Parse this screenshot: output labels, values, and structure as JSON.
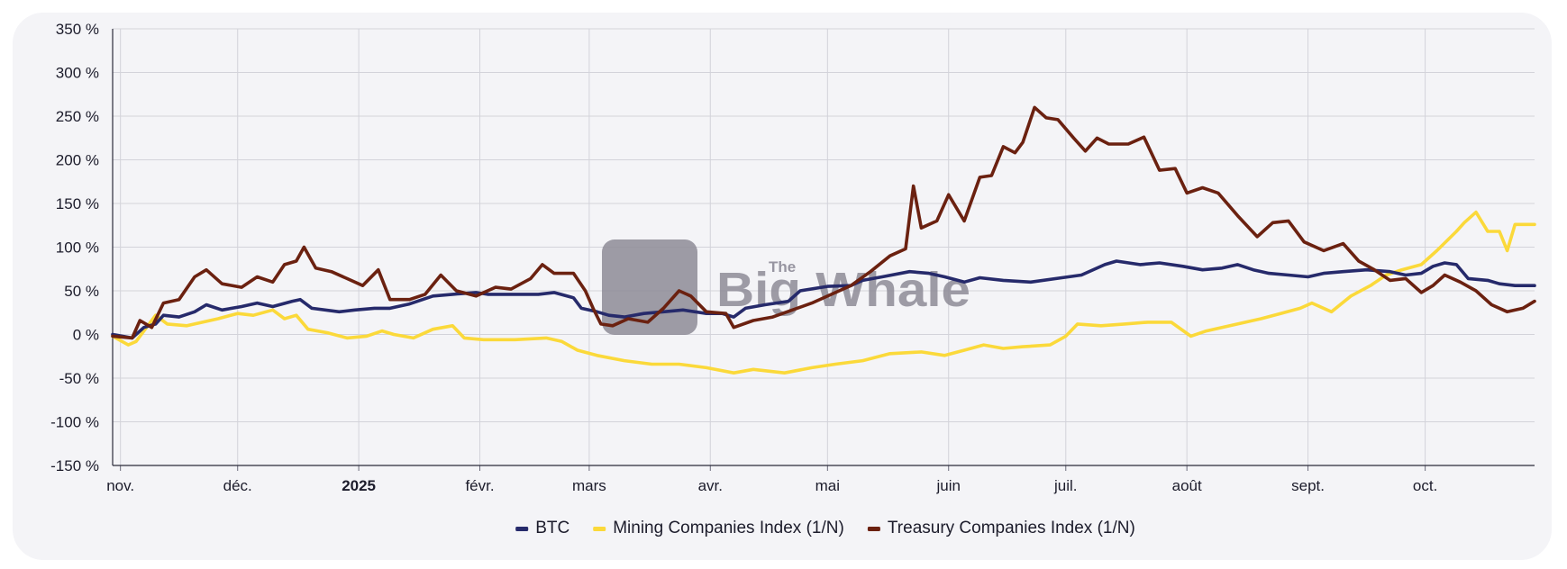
{
  "chart_data": {
    "type": "line",
    "y_unit": "%",
    "ylim": [
      -150,
      350
    ],
    "y_ticks": [
      350,
      300,
      250,
      200,
      150,
      100,
      50,
      0,
      -50,
      -100,
      -150
    ],
    "y_tick_labels": [
      "350 %",
      "300 %",
      "250 %",
      "200 %",
      "150 %",
      "100 %",
      "50 %",
      "0 %",
      "-50 %",
      "-100 %",
      "-150 %"
    ],
    "x_start": "2024-10-30",
    "x_end": "2025-10-29",
    "x_ticks": [
      {
        "date": "2024-11-01",
        "label": "nov.",
        "bold": false
      },
      {
        "date": "2024-12-01",
        "label": "déc.",
        "bold": false
      },
      {
        "date": "2025-01-01",
        "label": "2025",
        "bold": true
      },
      {
        "date": "2025-02-01",
        "label": "févr.",
        "bold": false
      },
      {
        "date": "2025-03-01",
        "label": "mars",
        "bold": false
      },
      {
        "date": "2025-04-01",
        "label": "avr.",
        "bold": false
      },
      {
        "date": "2025-05-01",
        "label": "mai",
        "bold": false
      },
      {
        "date": "2025-06-01",
        "label": "juin",
        "bold": false
      },
      {
        "date": "2025-07-01",
        "label": "juil.",
        "bold": false
      },
      {
        "date": "2025-08-01",
        "label": "août",
        "bold": false
      },
      {
        "date": "2025-09-01",
        "label": "sept.",
        "bold": false
      },
      {
        "date": "2025-10-01",
        "label": "oct.",
        "bold": false
      }
    ],
    "grid": true,
    "legend_position": "bottom-center",
    "series": [
      {
        "name": "BTC",
        "color": "#262a6b",
        "points": [
          [
            "2024-10-30",
            0
          ],
          [
            "2024-11-04",
            -4
          ],
          [
            "2024-11-07",
            8
          ],
          [
            "2024-11-10",
            12
          ],
          [
            "2024-11-12",
            22
          ],
          [
            "2024-11-16",
            20
          ],
          [
            "2024-11-20",
            26
          ],
          [
            "2024-11-23",
            34
          ],
          [
            "2024-11-27",
            28
          ],
          [
            "2024-12-02",
            32
          ],
          [
            "2024-12-06",
            36
          ],
          [
            "2024-12-10",
            32
          ],
          [
            "2024-12-15",
            38
          ],
          [
            "2024-12-17",
            40
          ],
          [
            "2024-12-20",
            30
          ],
          [
            "2024-12-27",
            26
          ],
          [
            "2024-12-31",
            28
          ],
          [
            "2025-01-05",
            30
          ],
          [
            "2025-01-09",
            30
          ],
          [
            "2025-01-14",
            35
          ],
          [
            "2025-01-20",
            44
          ],
          [
            "2025-01-25",
            46
          ],
          [
            "2025-01-31",
            48
          ],
          [
            "2025-02-03",
            46
          ],
          [
            "2025-02-10",
            46
          ],
          [
            "2025-02-16",
            46
          ],
          [
            "2025-02-20",
            48
          ],
          [
            "2025-02-25",
            42
          ],
          [
            "2025-02-27",
            30
          ],
          [
            "2025-03-03",
            26
          ],
          [
            "2025-03-06",
            22
          ],
          [
            "2025-03-10",
            20
          ],
          [
            "2025-03-15",
            24
          ],
          [
            "2025-03-20",
            26
          ],
          [
            "2025-03-25",
            28
          ],
          [
            "2025-03-31",
            24
          ],
          [
            "2025-04-04",
            24
          ],
          [
            "2025-04-07",
            20
          ],
          [
            "2025-04-10",
            30
          ],
          [
            "2025-04-15",
            34
          ],
          [
            "2025-04-21",
            38
          ],
          [
            "2025-04-24",
            50
          ],
          [
            "2025-05-01",
            55
          ],
          [
            "2025-05-07",
            56
          ],
          [
            "2025-05-10",
            62
          ],
          [
            "2025-05-15",
            66
          ],
          [
            "2025-05-22",
            72
          ],
          [
            "2025-05-27",
            70
          ],
          [
            "2025-05-31",
            66
          ],
          [
            "2025-06-05",
            60
          ],
          [
            "2025-06-09",
            65
          ],
          [
            "2025-06-15",
            62
          ],
          [
            "2025-06-22",
            60
          ],
          [
            "2025-06-30",
            65
          ],
          [
            "2025-07-05",
            68
          ],
          [
            "2025-07-11",
            80
          ],
          [
            "2025-07-14",
            84
          ],
          [
            "2025-07-20",
            80
          ],
          [
            "2025-07-25",
            82
          ],
          [
            "2025-07-31",
            78
          ],
          [
            "2025-08-05",
            74
          ],
          [
            "2025-08-10",
            76
          ],
          [
            "2025-08-14",
            80
          ],
          [
            "2025-08-18",
            74
          ],
          [
            "2025-08-22",
            70
          ],
          [
            "2025-08-27",
            68
          ],
          [
            "2025-09-01",
            66
          ],
          [
            "2025-09-05",
            70
          ],
          [
            "2025-09-10",
            72
          ],
          [
            "2025-09-16",
            74
          ],
          [
            "2025-09-22",
            72
          ],
          [
            "2025-09-26",
            68
          ],
          [
            "2025-09-30",
            70
          ],
          [
            "2025-10-03",
            78
          ],
          [
            "2025-10-06",
            82
          ],
          [
            "2025-10-09",
            80
          ],
          [
            "2025-10-12",
            64
          ],
          [
            "2025-10-17",
            62
          ],
          [
            "2025-10-20",
            58
          ],
          [
            "2025-10-24",
            56
          ],
          [
            "2025-10-29",
            56
          ]
        ]
      },
      {
        "name": "Mining Companies Index (1/N)",
        "color": "#fbd93a",
        "points": [
          [
            "2024-10-30",
            -2
          ],
          [
            "2024-11-03",
            -12
          ],
          [
            "2024-11-05",
            -8
          ],
          [
            "2024-11-08",
            10
          ],
          [
            "2024-11-10",
            22
          ],
          [
            "2024-11-13",
            12
          ],
          [
            "2024-11-18",
            10
          ],
          [
            "2024-11-22",
            14
          ],
          [
            "2024-11-26",
            18
          ],
          [
            "2024-12-01",
            24
          ],
          [
            "2024-12-05",
            22
          ],
          [
            "2024-12-10",
            28
          ],
          [
            "2024-12-13",
            18
          ],
          [
            "2024-12-16",
            22
          ],
          [
            "2024-12-19",
            6
          ],
          [
            "2024-12-24",
            2
          ],
          [
            "2024-12-29",
            -4
          ],
          [
            "2025-01-03",
            -2
          ],
          [
            "2025-01-07",
            4
          ],
          [
            "2025-01-10",
            0
          ],
          [
            "2025-01-15",
            -4
          ],
          [
            "2025-01-20",
            6
          ],
          [
            "2025-01-25",
            10
          ],
          [
            "2025-01-28",
            -4
          ],
          [
            "2025-02-02",
            -6
          ],
          [
            "2025-02-10",
            -6
          ],
          [
            "2025-02-18",
            -4
          ],
          [
            "2025-02-22",
            -8
          ],
          [
            "2025-02-26",
            -18
          ],
          [
            "2025-03-03",
            -24
          ],
          [
            "2025-03-10",
            -30
          ],
          [
            "2025-03-17",
            -34
          ],
          [
            "2025-03-24",
            -34
          ],
          [
            "2025-03-31",
            -38
          ],
          [
            "2025-04-07",
            -44
          ],
          [
            "2025-04-12",
            -40
          ],
          [
            "2025-04-20",
            -44
          ],
          [
            "2025-04-27",
            -38
          ],
          [
            "2025-05-03",
            -34
          ],
          [
            "2025-05-10",
            -30
          ],
          [
            "2025-05-17",
            -22
          ],
          [
            "2025-05-25",
            -20
          ],
          [
            "2025-05-31",
            -24
          ],
          [
            "2025-06-05",
            -18
          ],
          [
            "2025-06-10",
            -12
          ],
          [
            "2025-06-15",
            -16
          ],
          [
            "2025-06-20",
            -14
          ],
          [
            "2025-06-27",
            -12
          ],
          [
            "2025-07-01",
            -2
          ],
          [
            "2025-07-04",
            12
          ],
          [
            "2025-07-10",
            10
          ],
          [
            "2025-07-16",
            12
          ],
          [
            "2025-07-22",
            14
          ],
          [
            "2025-07-28",
            14
          ],
          [
            "2025-08-02",
            -2
          ],
          [
            "2025-08-06",
            4
          ],
          [
            "2025-08-12",
            10
          ],
          [
            "2025-08-16",
            14
          ],
          [
            "2025-08-20",
            18
          ],
          [
            "2025-08-25",
            24
          ],
          [
            "2025-08-30",
            30
          ],
          [
            "2025-09-02",
            36
          ],
          [
            "2025-09-07",
            26
          ],
          [
            "2025-09-12",
            44
          ],
          [
            "2025-09-17",
            56
          ],
          [
            "2025-09-21",
            68
          ],
          [
            "2025-09-25",
            74
          ],
          [
            "2025-09-30",
            80
          ],
          [
            "2025-10-04",
            96
          ],
          [
            "2025-10-09",
            118
          ],
          [
            "2025-10-11",
            128
          ],
          [
            "2025-10-14",
            140
          ],
          [
            "2025-10-17",
            118
          ],
          [
            "2025-10-20",
            118
          ],
          [
            "2025-10-22",
            96
          ],
          [
            "2025-10-24",
            126
          ],
          [
            "2025-10-29",
            126
          ]
        ]
      },
      {
        "name": "Treasury Companies Index (1/N)",
        "color": "#6b2110",
        "points": [
          [
            "2024-10-30",
            -2
          ],
          [
            "2024-11-04",
            -4
          ],
          [
            "2024-11-06",
            16
          ],
          [
            "2024-11-09",
            8
          ],
          [
            "2024-11-12",
            36
          ],
          [
            "2024-11-16",
            40
          ],
          [
            "2024-11-20",
            66
          ],
          [
            "2024-11-23",
            74
          ],
          [
            "2024-11-27",
            58
          ],
          [
            "2024-12-02",
            54
          ],
          [
            "2024-12-06",
            66
          ],
          [
            "2024-12-10",
            60
          ],
          [
            "2024-12-13",
            80
          ],
          [
            "2024-12-16",
            84
          ],
          [
            "2024-12-18",
            100
          ],
          [
            "2024-12-21",
            76
          ],
          [
            "2024-12-25",
            72
          ],
          [
            "2024-12-29",
            64
          ],
          [
            "2025-01-02",
            56
          ],
          [
            "2025-01-06",
            74
          ],
          [
            "2025-01-09",
            40
          ],
          [
            "2025-01-14",
            40
          ],
          [
            "2025-01-18",
            46
          ],
          [
            "2025-01-22",
            68
          ],
          [
            "2025-01-26",
            50
          ],
          [
            "2025-01-31",
            44
          ],
          [
            "2025-02-05",
            54
          ],
          [
            "2025-02-09",
            52
          ],
          [
            "2025-02-14",
            64
          ],
          [
            "2025-02-17",
            80
          ],
          [
            "2025-02-20",
            70
          ],
          [
            "2025-02-25",
            70
          ],
          [
            "2025-02-28",
            50
          ],
          [
            "2025-03-02",
            30
          ],
          [
            "2025-03-04",
            12
          ],
          [
            "2025-03-07",
            10
          ],
          [
            "2025-03-11",
            18
          ],
          [
            "2025-03-16",
            14
          ],
          [
            "2025-03-20",
            30
          ],
          [
            "2025-03-24",
            50
          ],
          [
            "2025-03-27",
            44
          ],
          [
            "2025-03-31",
            26
          ],
          [
            "2025-04-05",
            24
          ],
          [
            "2025-04-07",
            8
          ],
          [
            "2025-04-12",
            16
          ],
          [
            "2025-04-17",
            20
          ],
          [
            "2025-04-22",
            28
          ],
          [
            "2025-04-27",
            36
          ],
          [
            "2025-05-02",
            46
          ],
          [
            "2025-05-07",
            56
          ],
          [
            "2025-05-12",
            72
          ],
          [
            "2025-05-17",
            90
          ],
          [
            "2025-05-21",
            98
          ],
          [
            "2025-05-23",
            170
          ],
          [
            "2025-05-25",
            122
          ],
          [
            "2025-05-29",
            130
          ],
          [
            "2025-06-01",
            160
          ],
          [
            "2025-06-05",
            130
          ],
          [
            "2025-06-09",
            180
          ],
          [
            "2025-06-12",
            182
          ],
          [
            "2025-06-15",
            215
          ],
          [
            "2025-06-18",
            208
          ],
          [
            "2025-06-20",
            220
          ],
          [
            "2025-06-23",
            260
          ],
          [
            "2025-06-26",
            248
          ],
          [
            "2025-06-29",
            246
          ],
          [
            "2025-07-03",
            225
          ],
          [
            "2025-07-06",
            210
          ],
          [
            "2025-07-09",
            225
          ],
          [
            "2025-07-12",
            218
          ],
          [
            "2025-07-17",
            218
          ],
          [
            "2025-07-21",
            226
          ],
          [
            "2025-07-25",
            188
          ],
          [
            "2025-07-29",
            190
          ],
          [
            "2025-08-01",
            162
          ],
          [
            "2025-08-05",
            168
          ],
          [
            "2025-08-09",
            162
          ],
          [
            "2025-08-14",
            136
          ],
          [
            "2025-08-19",
            112
          ],
          [
            "2025-08-23",
            128
          ],
          [
            "2025-08-27",
            130
          ],
          [
            "2025-08-31",
            106
          ],
          [
            "2025-09-05",
            96
          ],
          [
            "2025-09-10",
            104
          ],
          [
            "2025-09-14",
            84
          ],
          [
            "2025-09-18",
            74
          ],
          [
            "2025-09-22",
            62
          ],
          [
            "2025-09-26",
            64
          ],
          [
            "2025-09-30",
            48
          ],
          [
            "2025-10-03",
            56
          ],
          [
            "2025-10-06",
            68
          ],
          [
            "2025-10-10",
            60
          ],
          [
            "2025-10-14",
            50
          ],
          [
            "2025-10-18",
            34
          ],
          [
            "2025-10-22",
            26
          ],
          [
            "2025-10-26",
            30
          ],
          [
            "2025-10-29",
            38
          ]
        ]
      }
    ]
  },
  "watermark": {
    "logo": "The Big Whale",
    "icon": "whale-logo-icon"
  }
}
